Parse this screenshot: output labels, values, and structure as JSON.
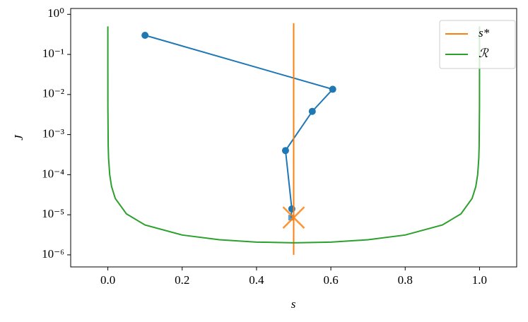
{
  "chart_data": {
    "type": "line",
    "xlabel": "s",
    "ylabel": "J",
    "xlim": [
      -0.1,
      1.1
    ],
    "xticks": [
      {
        "value": 0,
        "label": "0.0"
      },
      0.2,
      0.4,
      0.6,
      0.8,
      {
        "value": 1,
        "label": "1.0"
      }
    ],
    "ylim": [
      5e-07,
      1.4
    ],
    "log_y": true,
    "yticks": [
      {
        "value": 1e-06,
        "label": "10⁻⁶"
      },
      {
        "value": 1e-05,
        "label": "10⁻⁵"
      },
      {
        "value": 0.0001,
        "label": "10⁻⁴"
      },
      {
        "value": 0.001,
        "label": "10⁻³"
      },
      {
        "value": 0.01,
        "label": "10⁻²"
      },
      {
        "value": 0.1,
        "label": "10⁻¹"
      },
      {
        "value": 1,
        "label": "10⁰"
      }
    ],
    "legend": "upper right",
    "series": [
      {
        "color": "#1f77b4",
        "markers": true,
        "x": [
          0.1,
          0.605,
          0.55,
          0.478,
          0.495,
          0.493
        ],
        "values": [
          0.3,
          0.0135,
          0.0038,
          0.0004,
          1.4e-05,
          8.5e-06
        ]
      },
      {
        "name": "s*",
        "color": "#ff7f0e",
        "x": [
          0.5,
          0.5
        ],
        "values": [
          0.6,
          1e-06
        ],
        "target": [
          0.5,
          8.5e-06
        ]
      },
      {
        "name": "ℛ",
        "color": "#2ca02c",
        "x": [
          1e-06,
          1e-05,
          0.0001,
          0.001,
          0.002,
          0.005,
          0.01,
          0.02,
          0.05,
          0.1,
          0.2,
          0.3,
          0.4,
          0.5,
          0.6,
          0.7,
          0.8,
          0.9,
          0.95,
          0.98,
          0.99,
          0.995,
          0.998,
          0.999,
          0.9999,
          0.99999,
          0.999999
        ],
        "values": [
          0.5,
          0.05,
          0.005,
          0.0005005,
          0.0002505,
          0.0001005,
          5.05e-05,
          2.55e-05,
          1.053e-05,
          5.56e-06,
          3.125e-06,
          2.381e-06,
          2.083e-06,
          2e-06,
          2.083e-06,
          2.381e-06,
          3.125e-06,
          5.56e-06,
          1.053e-05,
          2.55e-05,
          5.05e-05,
          0.0001005,
          0.0002505,
          0.0005005,
          0.005,
          0.05,
          0.5
        ]
      }
    ]
  }
}
